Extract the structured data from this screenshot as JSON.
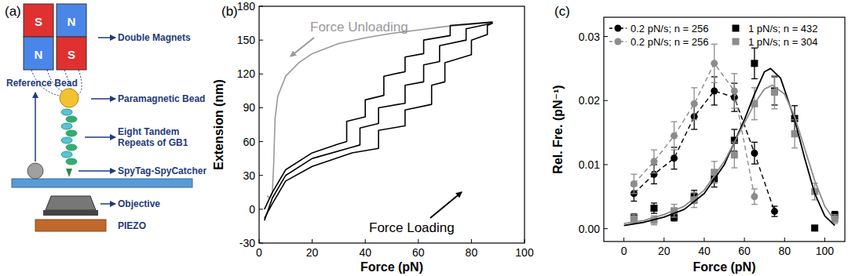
{
  "diagram": {
    "panel": "(a)",
    "magnets": {
      "label": "Double Magnets",
      "left_top": "S",
      "left_bottom": "N",
      "right_top": "N",
      "right_bottom": "S"
    },
    "labels": {
      "bead": "Paramagnetic Bead",
      "reference": "Reference Bead",
      "protein": [
        "Eight Tandem",
        "Repeats of GB1"
      ],
      "linker": "SpyTag-SpyCatcher",
      "objective": "Objective",
      "piezo": "PIEZO"
    }
  },
  "chart_data": [
    {
      "panel": "(b)",
      "type": "line",
      "x_label": "Force (pN)",
      "y_label": "Extension (nm)",
      "xlim": [
        0,
        100
      ],
      "xticks": [
        0,
        20,
        40,
        60,
        80,
        100
      ],
      "ylim": [
        -30,
        180
      ],
      "yticks": [
        -30,
        0,
        30,
        60,
        90,
        120,
        150,
        180
      ],
      "annotations": [
        "Force Unloading",
        "Force Loading"
      ],
      "series": [
        {
          "color": "#999999",
          "x": [
            88,
            80,
            70,
            60,
            50,
            40,
            30,
            20,
            15,
            10,
            7,
            6,
            5.5,
            5,
            4,
            3
          ],
          "values": [
            166,
            164,
            162,
            159,
            156,
            152,
            147,
            138,
            130,
            118,
            100,
            80,
            40,
            15,
            10,
            12
          ]
        },
        {
          "color": "#000000",
          "x": [
            2,
            5,
            10,
            20,
            30,
            33,
            33,
            40,
            40,
            47,
            47,
            55,
            55,
            62,
            62,
            72,
            72,
            88
          ],
          "values": [
            0,
            15,
            35,
            50,
            58,
            60,
            78,
            82,
            97,
            101,
            118,
            122,
            135,
            138,
            150,
            154,
            163,
            166
          ]
        },
        {
          "color": "#000000",
          "x": [
            2,
            5,
            10,
            20,
            35,
            38,
            38,
            45,
            45,
            55,
            55,
            62,
            62,
            68,
            68,
            78,
            78,
            88
          ],
          "values": [
            -10,
            10,
            30,
            45,
            55,
            57,
            72,
            76,
            90,
            94,
            110,
            113,
            128,
            131,
            145,
            150,
            160,
            165
          ]
        },
        {
          "color": "#000000",
          "x": [
            2,
            5,
            10,
            20,
            35,
            45,
            45,
            55,
            55,
            65,
            65,
            70,
            70,
            80,
            80,
            86,
            86,
            88
          ],
          "values": [
            -8,
            5,
            25,
            38,
            50,
            54,
            70,
            74,
            88,
            93,
            110,
            113,
            130,
            137,
            150,
            155,
            163,
            165
          ]
        }
      ]
    },
    {
      "panel": "(c)",
      "type": "scatter",
      "x_label": "Force (pN)",
      "y_label": "Rel. Fre. (pN⁻¹)",
      "xlim": [
        -10,
        110
      ],
      "xticks": [
        0,
        20,
        40,
        60,
        80,
        100
      ],
      "ylim": [
        -0.002,
        0.033
      ],
      "yticks": [
        {
          "value": 0,
          "label": "0.00"
        },
        0.01,
        0.02,
        0.03
      ],
      "legend": "top",
      "series": [
        {
          "name": "0.2 pN/s; n = 256",
          "color": "#000000",
          "marker": "circle",
          "line_style": "dashed",
          "x": [
            5,
            15,
            25,
            35,
            45,
            55,
            65,
            75
          ],
          "values": [
            0.0055,
            0.0085,
            0.011,
            0.0175,
            0.0215,
            0.0205,
            0.0118,
            0.0027
          ],
          "errors": [
            0.0012,
            0.0015,
            0.0017,
            0.002,
            0.0022,
            0.0022,
            0.0017,
            0.0008
          ]
        },
        {
          "name": "0.2 pN/s; n = 256",
          "color": "#8c8c8c",
          "marker": "circle",
          "line_style": "dashed",
          "x": [
            5,
            15,
            25,
            35,
            45,
            55,
            65
          ],
          "values": [
            0.007,
            0.0105,
            0.0145,
            0.0195,
            0.0258,
            0.0215,
            0.005
          ],
          "errors": [
            0.0015,
            0.0018,
            0.0022,
            0.0025,
            0.003,
            0.0027,
            0.0012
          ]
        },
        {
          "name": "1 pN/s; n = 432",
          "color": "#000000",
          "marker": "square",
          "line_style": "none",
          "x": [
            5,
            15,
            25,
            35,
            45,
            55,
            65,
            75,
            85,
            95,
            105
          ],
          "values": [
            0.0017,
            0.0032,
            0.0018,
            0.005,
            0.0078,
            0.0138,
            0.0258,
            0.0215,
            0.0172,
            0.0001,
            0.0021
          ],
          "errors": [
            0.0006,
            0.0008,
            0.0006,
            0.001,
            0.0013,
            0.0017,
            0.0024,
            0.0022,
            0.002,
            0.0003,
            0.0006
          ]
        },
        {
          "name": "1 pN/s; n = 304",
          "color": "#8c8c8c",
          "marker": "square",
          "line_style": "none",
          "x": [
            5,
            15,
            25,
            35,
            45,
            55,
            65,
            75,
            85,
            95,
            105
          ],
          "values": [
            0.0015,
            0.0013,
            0.0028,
            0.0045,
            0.0088,
            0.0115,
            0.0195,
            0.0213,
            0.0148,
            0.0058,
            0.0015
          ],
          "errors": [
            0.0007,
            0.0007,
            0.001,
            0.0012,
            0.0017,
            0.002,
            0.0025,
            0.0026,
            0.0022,
            0.0013,
            0.0007
          ]
        },
        {
          "type": "line",
          "color": "#000000",
          "line_style": "solid",
          "x": [
            0,
            10,
            20,
            30,
            40,
            50,
            60,
            65,
            70,
            73,
            78,
            85,
            90,
            95,
            100,
            105
          ],
          "values": [
            0.0005,
            0.001,
            0.0018,
            0.003,
            0.0055,
            0.01,
            0.017,
            0.021,
            0.0245,
            0.025,
            0.0235,
            0.017,
            0.011,
            0.0055,
            0.002,
            0.0005
          ]
        },
        {
          "type": "line",
          "color": "#8c8c8c",
          "line_style": "solid",
          "x": [
            0,
            10,
            20,
            30,
            40,
            50,
            60,
            65,
            70,
            74,
            80,
            85,
            90,
            95,
            100,
            105
          ],
          "values": [
            0.0008,
            0.0013,
            0.0022,
            0.0035,
            0.006,
            0.0105,
            0.0165,
            0.0195,
            0.0218,
            0.0224,
            0.021,
            0.0175,
            0.0125,
            0.0075,
            0.0035,
            0.0012
          ]
        }
      ]
    }
  ]
}
